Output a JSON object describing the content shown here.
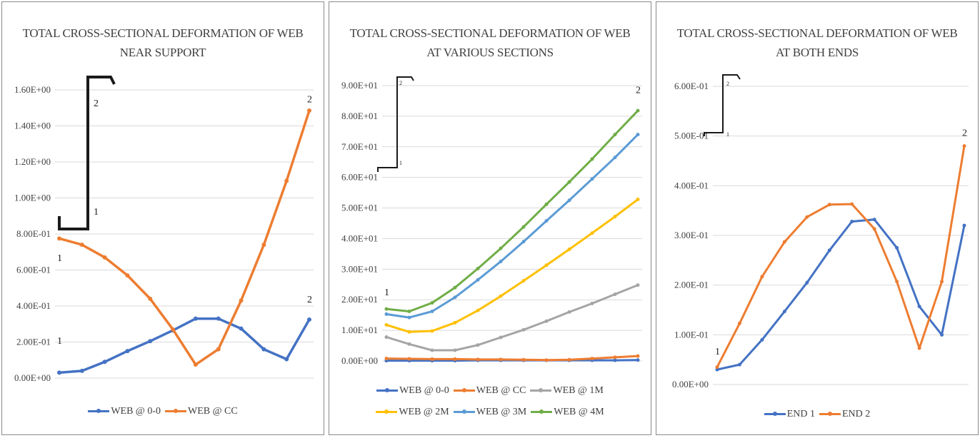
{
  "charts": [
    {
      "title_lines": [
        "TOTAL CROSS-SECTIONAL DEFORMATION OF WEB",
        "NEAR SUPPORT"
      ],
      "legend_rows": [
        [
          0,
          1
        ]
      ]
    },
    {
      "title_lines": [
        "TOTAL CROSS-SECTIONAL DEFORMATION OF WEB",
        "AT VARIOUS SECTIONS"
      ],
      "legend_rows": [
        [
          0,
          1,
          2
        ],
        [
          3,
          4,
          5
        ]
      ]
    },
    {
      "title_lines": [
        "TOTAL CROSS-SECTIONAL DEFORMATION OF WEB",
        "AT BOTH ENDS"
      ],
      "legend_rows": [
        [
          0,
          1
        ]
      ]
    }
  ],
  "chart_data": [
    {
      "type": "line",
      "title": "TOTAL CROSS-SECTIONAL DEFORMATION OF WEB NEAR SUPPORT",
      "x": [
        1,
        2,
        3,
        4,
        5,
        6,
        7,
        8,
        9,
        10,
        11,
        12
      ],
      "ylim": [
        0,
        1.6
      ],
      "yticks": [
        0,
        0.2,
        0.4,
        0.6,
        0.8,
        1.0,
        1.2,
        1.4,
        1.6
      ],
      "ytick_labels": [
        "0.00E+00",
        "2.00E-01",
        "4.00E-01",
        "6.00E-01",
        "8.00E-01",
        "1.00E+00",
        "1.20E+00",
        "1.40E+00",
        "1.60E+00"
      ],
      "grid": true,
      "legend": "bottom",
      "series": [
        {
          "name": "WEB @ 0-0",
          "color": "#4472C4",
          "values": [
            0.03,
            0.04,
            0.09,
            0.15,
            0.205,
            0.265,
            0.33,
            0.33,
            0.275,
            0.16,
            0.105,
            0.325
          ]
        },
        {
          "name": "WEB @ CC",
          "color": "#ED7D31",
          "values": [
            0.775,
            0.74,
            0.67,
            0.57,
            0.44,
            0.27,
            0.075,
            0.16,
            0.43,
            0.74,
            1.095,
            1.485
          ]
        }
      ],
      "annotations": [
        {
          "text": "1",
          "x": 1,
          "y": 0.19
        },
        {
          "text": "1",
          "x": 1,
          "y": 0.65
        },
        {
          "text": "2",
          "x": 12,
          "y": 0.42
        },
        {
          "text": "2",
          "x": 12,
          "y": 1.53
        }
      ],
      "inset": {
        "labels": [
          "2",
          "1"
        ]
      }
    },
    {
      "type": "line",
      "title": "TOTAL CROSS-SECTIONAL DEFORMATION OF WEB AT VARIOUS SECTIONS",
      "x": [
        1,
        2,
        3,
        4,
        5,
        6,
        7,
        8,
        9,
        10,
        11,
        12
      ],
      "ylim": [
        0,
        90
      ],
      "yticks": [
        0,
        10,
        20,
        30,
        40,
        50,
        60,
        70,
        80,
        90
      ],
      "ytick_labels": [
        "0.00E+00",
        "1.00E+01",
        "2.00E+01",
        "3.00E+01",
        "4.00E+01",
        "5.00E+01",
        "6.00E+01",
        "7.00E+01",
        "8.00E+01",
        "9.00E+01"
      ],
      "grid": true,
      "legend": "bottom",
      "series": [
        {
          "name": "WEB @ 0-0",
          "color": "#4472C4",
          "values": [
            0.1,
            0.1,
            0.1,
            0.1,
            0.2,
            0.2,
            0.2,
            0.2,
            0.2,
            0.2,
            0.2,
            0.3
          ]
        },
        {
          "name": "WEB @ CC",
          "color": "#ED7D31",
          "values": [
            0.8,
            0.7,
            0.6,
            0.6,
            0.5,
            0.5,
            0.4,
            0.3,
            0.4,
            0.8,
            1.2,
            1.6
          ]
        },
        {
          "name": "WEB @ 1M",
          "color": "#A5A5A5",
          "values": [
            7.8,
            5.5,
            3.5,
            3.5,
            5.2,
            7.7,
            10.2,
            13.0,
            16.0,
            18.8,
            21.8,
            24.8
          ]
        },
        {
          "name": "WEB @ 2M",
          "color": "#FFC000",
          "values": [
            11.8,
            9.5,
            9.8,
            12.5,
            16.5,
            21.2,
            26.2,
            31.3,
            36.5,
            41.8,
            47.2,
            52.8
          ]
        },
        {
          "name": "WEB @ 3M",
          "color": "#5B9BD5",
          "values": [
            15.3,
            14.2,
            16.2,
            20.8,
            26.5,
            32.5,
            39.0,
            45.8,
            52.5,
            59.5,
            66.5,
            74.0
          ]
        },
        {
          "name": "WEB @ 4M",
          "color": "#70AD47",
          "values": [
            17.0,
            16.2,
            19.0,
            24.0,
            30.2,
            36.8,
            43.8,
            51.2,
            58.5,
            66.0,
            74.0,
            81.8
          ]
        }
      ],
      "annotations": [
        {
          "text": "1",
          "x": 1,
          "y": 21.5
        },
        {
          "text": "2",
          "x": 12,
          "y": 87.5
        }
      ],
      "inset": {
        "labels": [
          "2",
          "1"
        ]
      }
    },
    {
      "type": "line",
      "title": "TOTAL CROSS-SECTIONAL DEFORMATION OF WEB AT BOTH ENDS",
      "x": [
        1,
        2,
        3,
        4,
        5,
        6,
        7,
        8,
        9,
        10,
        11,
        12
      ],
      "ylim": [
        0,
        0.6
      ],
      "yticks": [
        0,
        0.1,
        0.2,
        0.3,
        0.4,
        0.5,
        0.6
      ],
      "ytick_labels": [
        "0.00E+00",
        "1.00E-01",
        "2.00E-01",
        "3.00E-01",
        "4.00E-01",
        "5.00E-01",
        "6.00E-01"
      ],
      "grid": true,
      "legend": "bottom",
      "series": [
        {
          "name": "END 1",
          "color": "#4472C4",
          "values": [
            0.03,
            0.04,
            0.09,
            0.147,
            0.205,
            0.27,
            0.328,
            0.332,
            0.275,
            0.157,
            0.1,
            0.32
          ]
        },
        {
          "name": "END 2",
          "color": "#ED7D31",
          "values": [
            0.035,
            0.123,
            0.217,
            0.287,
            0.337,
            0.362,
            0.363,
            0.313,
            0.207,
            0.073,
            0.207,
            0.48
          ]
        }
      ],
      "annotations": [
        {
          "text": "1",
          "x": 1,
          "y": 0.06
        },
        {
          "text": "2",
          "x": 12,
          "y": 0.5
        }
      ],
      "inset": {
        "labels": [
          "2",
          "1"
        ]
      }
    }
  ]
}
